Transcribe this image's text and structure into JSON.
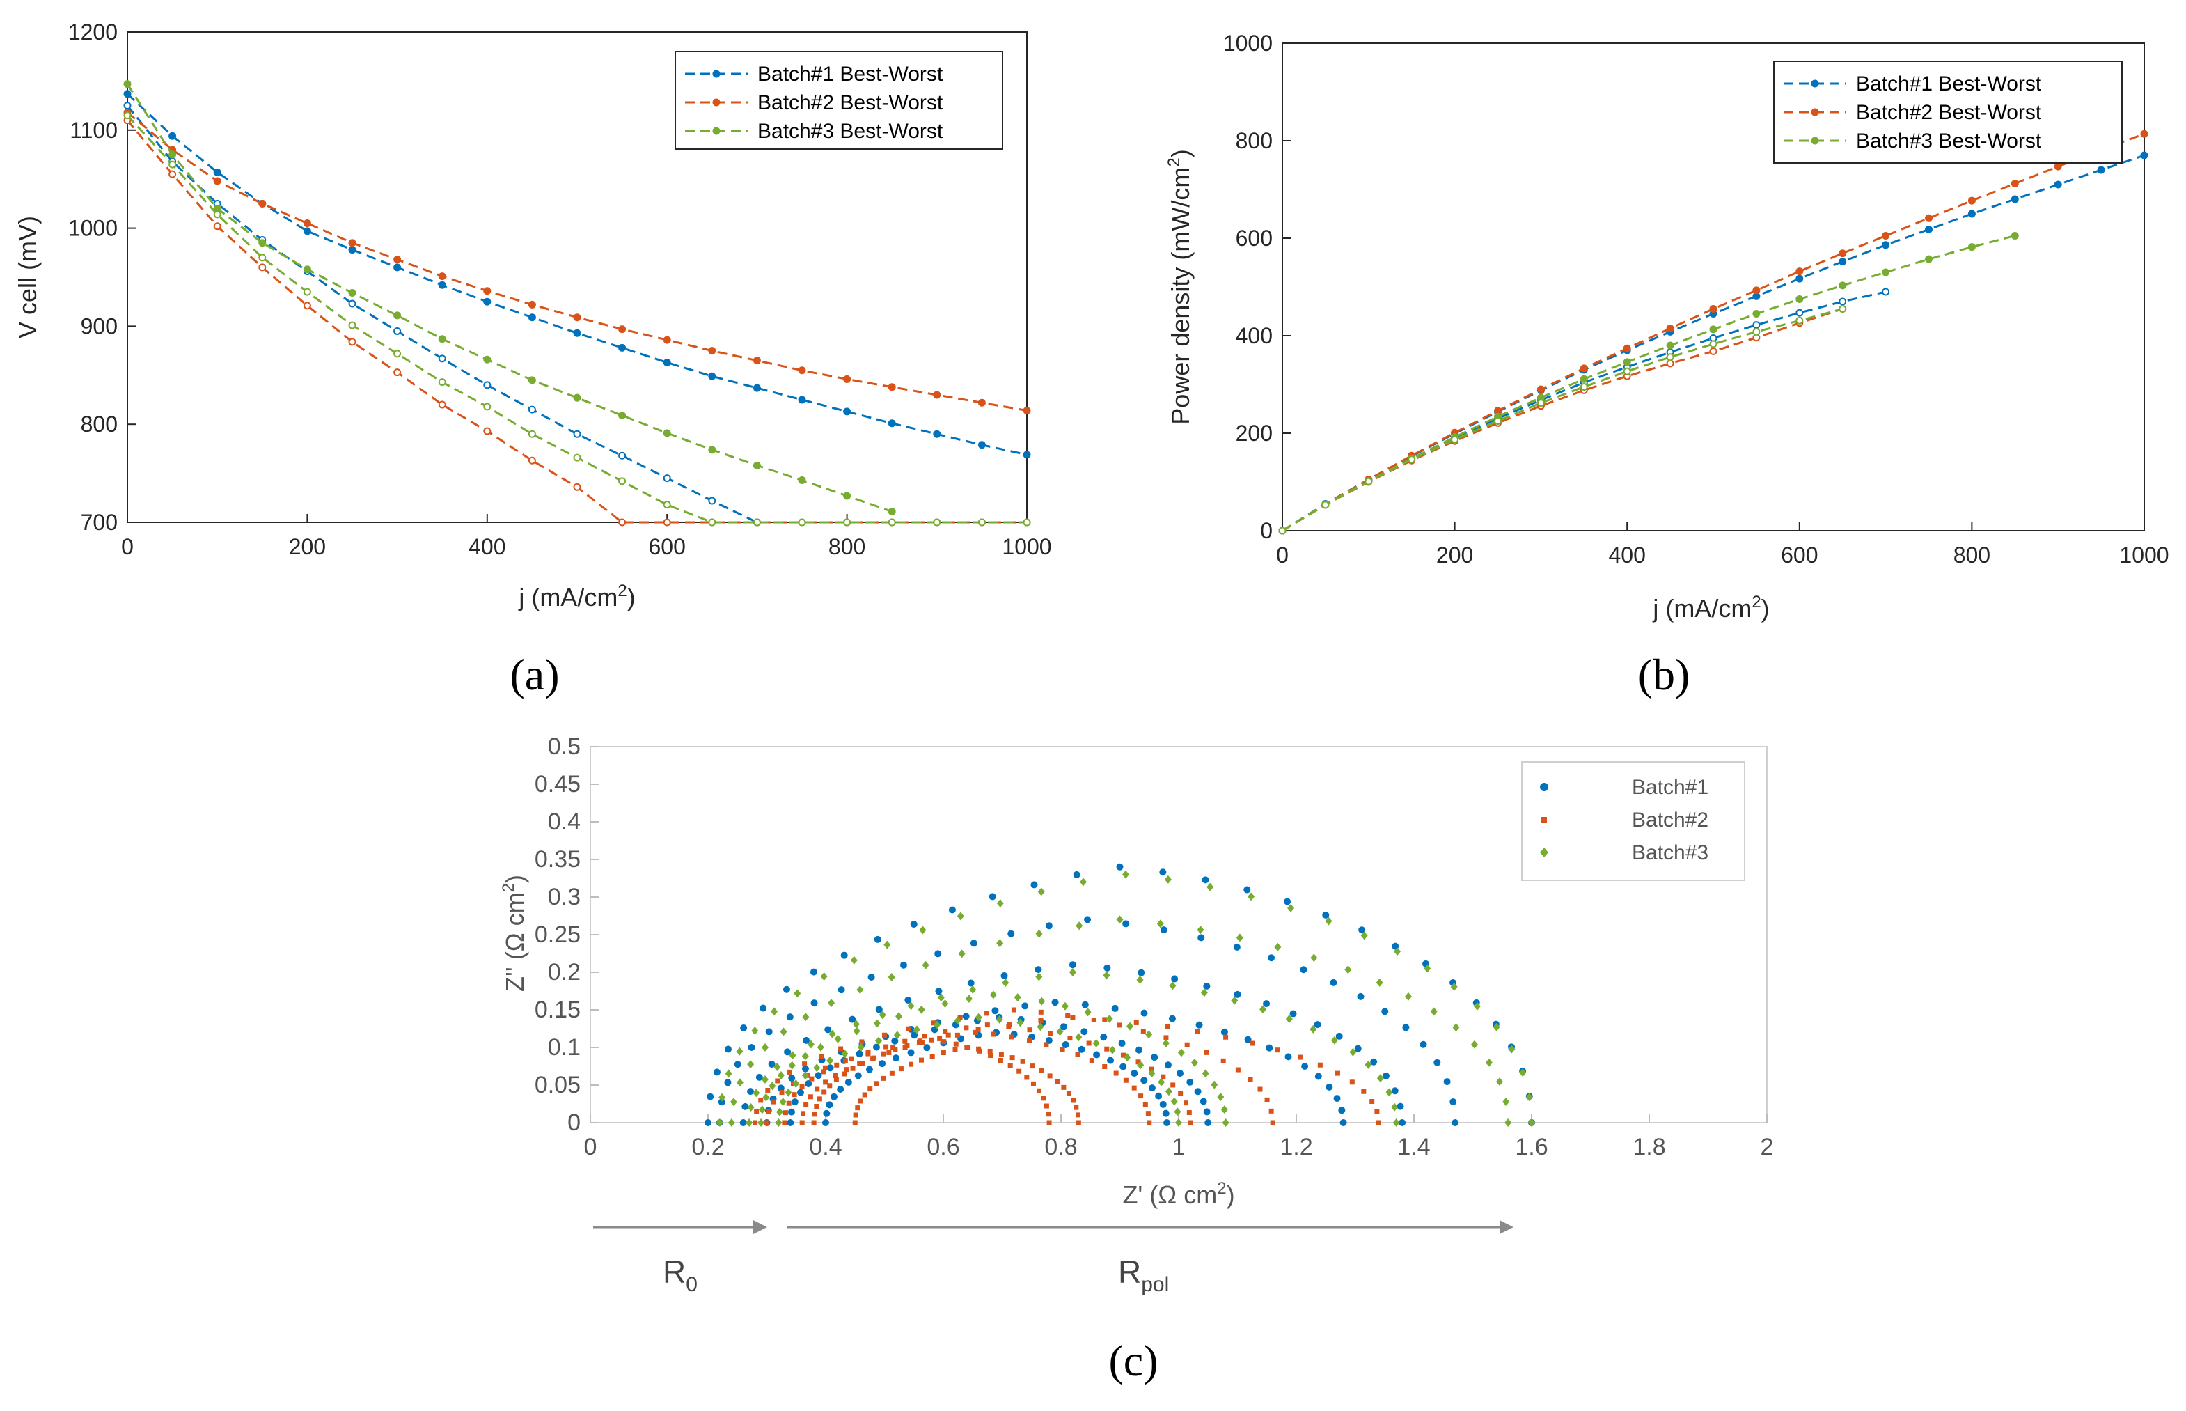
{
  "colors": {
    "batch1": "#0072BD",
    "batch2": "#D95319",
    "batch3": "#77AC30"
  },
  "chart_data": [
    {
      "panel": "a",
      "panel_label": "(a)",
      "type": "line",
      "ylabel": "V cell (mV)",
      "xlabel": {
        "main": "j (mA/cm",
        "sup": "2",
        "end": ")"
      },
      "xlim": [
        0,
        1000
      ],
      "ylim": [
        700,
        1200
      ],
      "xticks": [
        "0",
        "200",
        "400",
        "600",
        "800",
        "1000"
      ],
      "yticks": [
        "700",
        "800",
        "900",
        "1000",
        "1100",
        "1200"
      ],
      "legend_position": "top-right",
      "series": [
        {
          "name": "Batch#1 Best-Worst",
          "color": "batch1",
          "lines": [
            {
              "x": [
                0,
                50,
                100,
                150,
                200,
                250,
                300,
                350,
                400,
                450,
                500,
                550,
                600,
                650,
                700,
                750,
                800,
                850,
                900,
                950,
                1000
              ],
              "y": [
                1137,
                1094,
                1057,
                1025,
                997,
                978,
                960,
                942,
                925,
                909,
                893,
                878,
                863,
                849,
                837,
                825,
                813,
                801,
                790,
                779,
                769
              ]
            },
            {
              "x": [
                0,
                50,
                100,
                150,
                200,
                250,
                300,
                350,
                400,
                450,
                500,
                550,
                600,
                650,
                700
              ],
              "y": [
                1125,
                1068,
                1025,
                988,
                956,
                923,
                895,
                867,
                840,
                815,
                790,
                768,
                745,
                722,
                700
              ]
            }
          ]
        },
        {
          "name": "Batch#2 Best-Worst",
          "color": "batch2",
          "lines": [
            {
              "x": [
                0,
                50,
                100,
                150,
                200,
                250,
                300,
                350,
                400,
                450,
                500,
                550,
                600,
                650,
                700,
                750,
                800,
                850,
                900,
                950,
                1000
              ],
              "y": [
                1118,
                1080,
                1048,
                1025,
                1005,
                985,
                968,
                951,
                936,
                922,
                909,
                897,
                886,
                875,
                865,
                855,
                846,
                838,
                830,
                822,
                814
              ]
            },
            {
              "x": [
                0,
                50,
                100,
                150,
                200,
                250,
                300,
                350,
                400,
                450,
                500,
                550,
                600,
                650,
                700,
                750,
                800,
                850,
                900,
                950,
                1000
              ],
              "y": [
                1110,
                1055,
                1002,
                960,
                921,
                884,
                853,
                820,
                793,
                763,
                736,
                700,
                700,
                700,
                700,
                700,
                700,
                700,
                700,
                700,
                700
              ]
            }
          ]
        },
        {
          "name": "Batch#3 Best-Worst",
          "color": "batch3",
          "lines": [
            {
              "x": [
                0,
                50,
                100,
                150,
                200,
                250,
                300,
                350,
                400,
                450,
                500,
                550,
                600,
                650,
                700,
                750,
                800,
                850
              ],
              "y": [
                1147,
                1075,
                1020,
                985,
                958,
                934,
                911,
                887,
                866,
                845,
                827,
                809,
                791,
                774,
                758,
                743,
                727,
                711
              ]
            },
            {
              "x": [
                0,
                50,
                100,
                150,
                200,
                250,
                300,
                350,
                400,
                450,
                500,
                550,
                600,
                650,
                700,
                750,
                800,
                850,
                900,
                950,
                1000
              ],
              "y": [
                1115,
                1065,
                1014,
                970,
                935,
                901,
                872,
                843,
                818,
                790,
                766,
                742,
                718,
                700,
                700,
                700,
                700,
                700,
                700,
                700,
                700
              ]
            }
          ]
        }
      ]
    },
    {
      "panel": "b",
      "panel_label": "(b)",
      "type": "line",
      "ylabel": {
        "main": "Power density (mW/cm",
        "sup": "2",
        "end": ")"
      },
      "xlabel": {
        "main": "j (mA/cm",
        "sup": "2",
        "end": ")"
      },
      "xlim": [
        0,
        1000
      ],
      "ylim": [
        0,
        1000
      ],
      "xticks": [
        "0",
        "200",
        "400",
        "600",
        "800",
        "1000"
      ],
      "yticks": [
        "0",
        "200",
        "400",
        "600",
        "800",
        "1000"
      ],
      "legend_position": "top-right",
      "series": [
        {
          "name": "Batch#1 Best-Worst",
          "color": "batch1",
          "lines": [
            {
              "x": [
                0,
                50,
                100,
                150,
                200,
                250,
                300,
                350,
                400,
                450,
                500,
                550,
                600,
                650,
                700,
                750,
                800,
                850,
                900,
                950,
                1000
              ],
              "y": [
                0,
                55,
                105,
                153,
                199,
                244,
                288,
                330,
                370,
                408,
                445,
                481,
                517,
                552,
                586,
                618,
                650,
                680,
                710,
                740,
                770
              ]
            },
            {
              "x": [
                0,
                50,
                100,
                150,
                200,
                250,
                300,
                350,
                400,
                450,
                500,
                550,
                600,
                650,
                700
              ],
              "y": [
                0,
                53,
                102,
                148,
                190,
                230,
                268,
                304,
                336,
                366,
                395,
                422,
                447,
                470,
                490
              ]
            }
          ]
        },
        {
          "name": "Batch#2 Best-Worst",
          "color": "batch2",
          "lines": [
            {
              "x": [
                0,
                50,
                100,
                150,
                200,
                250,
                300,
                350,
                400,
                450,
                500,
                550,
                600,
                650,
                700,
                750,
                800,
                850,
                900,
                950,
                1000
              ],
              "y": [
                0,
                54,
                105,
                154,
                201,
                246,
                290,
                333,
                374,
                415,
                455,
                493,
                532,
                569,
                605,
                641,
                677,
                712,
                747,
                781,
                814
              ]
            },
            {
              "x": [
                0,
                50,
                100,
                150,
                200,
                250,
                300,
                350,
                400,
                450,
                500,
                550,
                600,
                650
              ],
              "y": [
                0,
                53,
                100,
                144,
                184,
                221,
                256,
                288,
                317,
                343,
                368,
                396,
                426,
                455
              ]
            }
          ]
        },
        {
          "name": "Batch#3 Best-Worst",
          "color": "batch3",
          "lines": [
            {
              "x": [
                0,
                50,
                100,
                150,
                200,
                250,
                300,
                350,
                400,
                450,
                500,
                550,
                600,
                650,
                700,
                750,
                800,
                850
              ],
              "y": [
                0,
                54,
                102,
                148,
                192,
                234,
                273,
                311,
                346,
                380,
                413,
                445,
                475,
                503,
                530,
                557,
                582,
                605
              ]
            },
            {
              "x": [
                0,
                50,
                100,
                150,
                200,
                250,
                300,
                350,
                400,
                450,
                500,
                550,
                600,
                650
              ],
              "y": [
                0,
                53,
                101,
                146,
                187,
                225,
                262,
                295,
                327,
                356,
                383,
                408,
                431,
                455
              ]
            }
          ]
        }
      ]
    },
    {
      "panel": "c",
      "panel_label": "(c)",
      "type": "scatter",
      "ylabel": {
        "main": "Z'' (Ω cm",
        "sup": "2",
        "end": ")"
      },
      "xlabel": {
        "main": "Z' (Ω cm",
        "sup": "2",
        "end": ")"
      },
      "xlim": [
        0,
        2
      ],
      "ylim": [
        0,
        0.5
      ],
      "xticks": [
        "0",
        "0.2",
        "0.4",
        "0.6",
        "0.8",
        "1",
        "1.2",
        "1.4",
        "1.6",
        "1.8",
        "2"
      ],
      "yticks": [
        "0",
        "0.05",
        "0.1",
        "0.15",
        "0.2",
        "0.25",
        "0.3",
        "0.35",
        "0.4",
        "0.45",
        "0.5"
      ],
      "legend_position": "top-right",
      "r0_label": {
        "main": "R",
        "sub": "0"
      },
      "rpol_label": {
        "main": "R",
        "sub": "pol"
      },
      "arcs": [
        {
          "series": "Batch#1",
          "color": "batch1",
          "start": 0.2,
          "end": 1.6,
          "height": 0.34
        },
        {
          "series": "Batch#1",
          "color": "batch1",
          "start": 0.22,
          "end": 1.47,
          "height": 0.27
        },
        {
          "series": "Batch#1",
          "color": "batch1",
          "start": 0.26,
          "end": 1.38,
          "height": 0.21
        },
        {
          "series": "Batch#1",
          "color": "batch1",
          "start": 0.3,
          "end": 1.28,
          "height": 0.16
        },
        {
          "series": "Batch#1",
          "color": "batch1",
          "start": 0.34,
          "end": 1.05,
          "height": 0.14
        },
        {
          "series": "Batch#1",
          "color": "batch1",
          "start": 0.4,
          "end": 0.98,
          "height": 0.12
        },
        {
          "series": "Batch#2",
          "color": "batch2",
          "start": 0.28,
          "end": 1.16,
          "height": 0.15
        },
        {
          "series": "Batch#2",
          "color": "batch2",
          "start": 0.3,
          "end": 1.34,
          "height": 0.14
        },
        {
          "series": "Batch#2",
          "color": "batch2",
          "start": 0.33,
          "end": 1.02,
          "height": 0.13
        },
        {
          "series": "Batch#2",
          "color": "batch2",
          "start": 0.36,
          "end": 0.95,
          "height": 0.12
        },
        {
          "series": "Batch#2",
          "color": "batch2",
          "start": 0.38,
          "end": 0.78,
          "height": 0.11
        },
        {
          "series": "Batch#2",
          "color": "batch2",
          "start": 0.45,
          "end": 0.83,
          "height": 0.1
        },
        {
          "series": "Batch#3",
          "color": "batch3",
          "start": 0.22,
          "end": 1.6,
          "height": 0.33
        },
        {
          "series": "Batch#3",
          "color": "batch3",
          "start": 0.24,
          "end": 1.56,
          "height": 0.27
        },
        {
          "series": "Batch#3",
          "color": "batch3",
          "start": 0.27,
          "end": 1.37,
          "height": 0.2
        },
        {
          "series": "Batch#3",
          "color": "batch3",
          "start": 0.29,
          "end": 1.08,
          "height": 0.17
        },
        {
          "series": "Batch#3",
          "color": "batch3",
          "start": 0.32,
          "end": 1.0,
          "height": 0.14
        }
      ],
      "legend": [
        {
          "name": "Batch#1",
          "color": "batch1"
        },
        {
          "name": "Batch#2",
          "color": "batch2"
        },
        {
          "name": "Batch#3",
          "color": "batch3"
        }
      ]
    }
  ]
}
